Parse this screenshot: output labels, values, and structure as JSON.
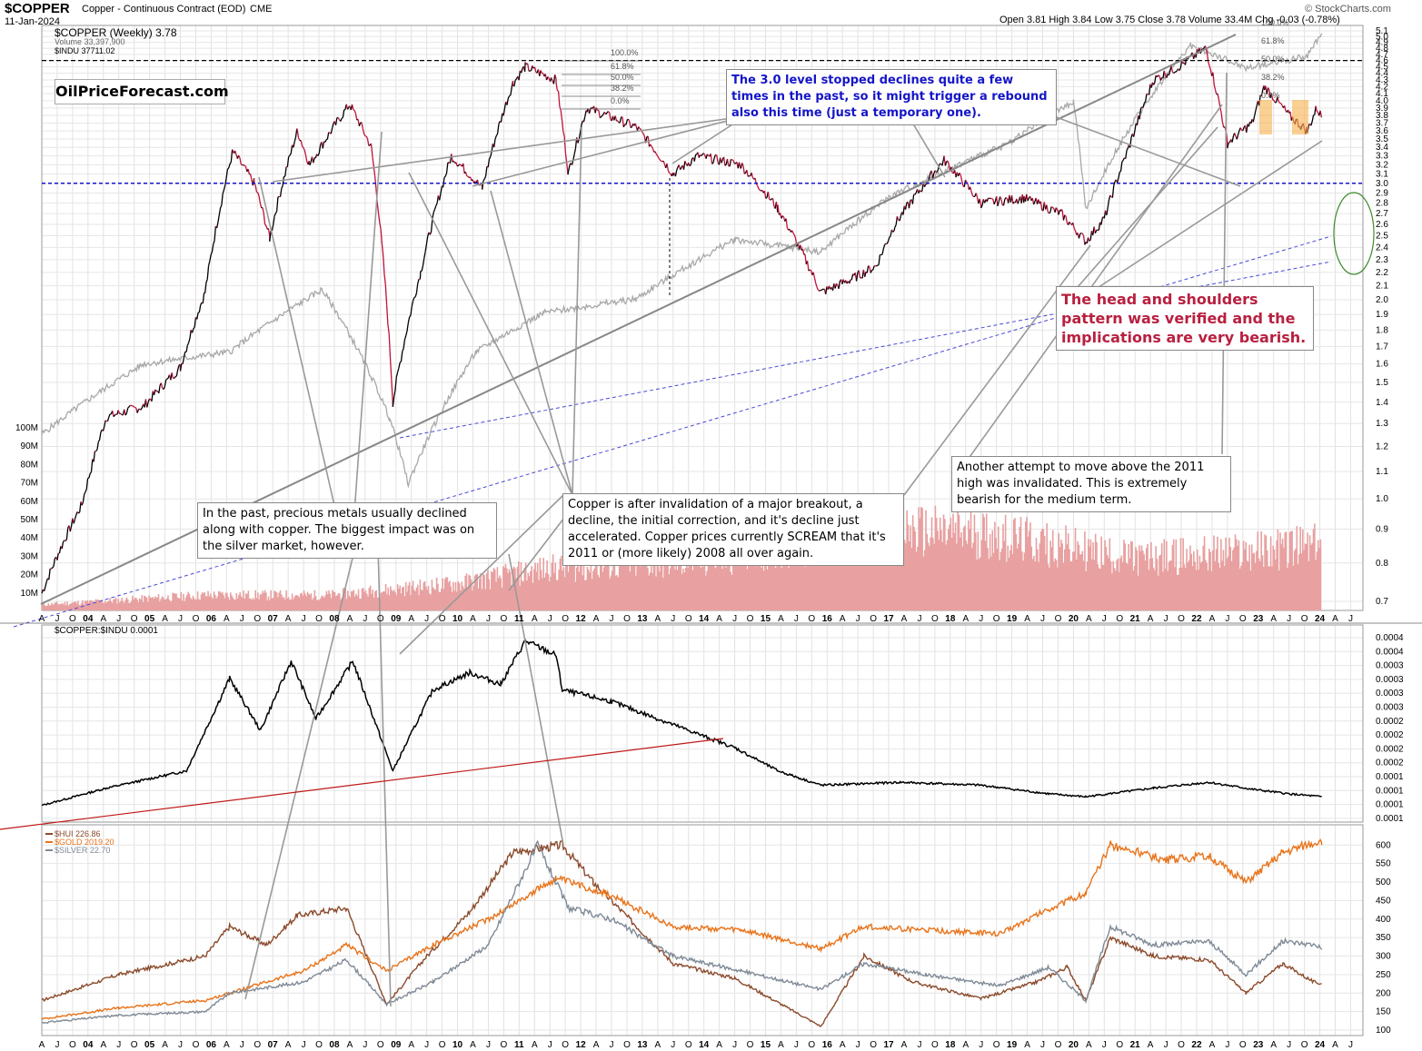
{
  "header": {
    "symbol": "$COPPER",
    "description": "Copper - Continuous Contract (EOD)",
    "exchange": "CME",
    "date": "11-Jan-2024",
    "ohlc": "Open 3.81  High 3.84  Low 3.75  Close 3.78  Volume 33.4M  Chg -0.03 (-0.78%)",
    "credit": "© StockCharts.com",
    "legend_copper": "$COPPER (Weekly) 3.78",
    "legend_volume": "Volume 33,397,900",
    "legend_indu": "$INDU 37711.02",
    "watermark": "OilPriceForecast.com"
  },
  "annotations": {
    "level_note": "The 3.0 level stopped declines quite a few times in the past, so it might trigger a rebound also this time (just a temporary one).",
    "hs_note": "The head and shoulders pattern was verified and the implications are very bearish.",
    "attempt_note": "Another attempt to move above the 2011 high was invalidated. This is extremely bearish for the medium term.",
    "breakout_note": "Copper is after invalidation of a major breakout, a decline, the initial correction, and it's decline just accelerated. Copper prices currently SCREAM that it's 2011 or (more likely) 2008 all over again.",
    "metals_note": "In the past, precious metals usually declined along with copper. The biggest impact was on the silver market, however."
  },
  "colors": {
    "copper_up": "#000000",
    "copper_down": "#c0103a",
    "indu": "#a8a8a8",
    "volume": "#e8a0a0",
    "ratio": "#000000",
    "hui": "#8b4a2b",
    "gold": "#e8731a",
    "silver": "#7f8a96",
    "level_line": "#1515c8",
    "trend_red": "#c01818"
  },
  "chart_data": [
    {
      "type": "line",
      "title": "$COPPER (Weekly)",
      "y_ticks": [
        "5.1",
        "5.0",
        "4.9",
        "4.8",
        "4.7",
        "4.6",
        "4.5",
        "4.4",
        "4.3",
        "4.2",
        "4.1",
        "4.0",
        "3.9",
        "3.8",
        "3.7",
        "3.6",
        "3.5",
        "3.4",
        "3.3",
        "3.2",
        "3.1",
        "3.0",
        "2.9",
        "2.8",
        "2.7",
        "2.6",
        "2.5",
        "2.4",
        "2.3",
        "2.2",
        "2.1",
        "2.0",
        "1.9",
        "1.8",
        "1.7",
        "1.6",
        "1.5",
        "1.4",
        "1.3",
        "1.2",
        "1.1",
        "1.0",
        "0.9",
        "0.8",
        "0.7"
      ],
      "y_scale": "log",
      "volume_ticks": [
        "100M",
        "90M",
        "80M",
        "70M",
        "60M",
        "50M",
        "40M",
        "30M",
        "20M",
        "10M"
      ],
      "fib_labels": [
        "100.0%",
        "61.8%",
        "50.0%",
        "38.2%",
        "0.0%"
      ],
      "x_labels": [
        "A",
        "J",
        "O",
        "04",
        "A",
        "J",
        "O",
        "05",
        "A",
        "J",
        "O",
        "06",
        "A",
        "J",
        "O",
        "07",
        "A",
        "J",
        "O",
        "08",
        "A",
        "J",
        "O",
        "09",
        "A",
        "J",
        "O",
        "10",
        "A",
        "J",
        "O",
        "11",
        "A",
        "J",
        "O",
        "12",
        "A",
        "J",
        "O",
        "13",
        "A",
        "J",
        "O",
        "14",
        "A",
        "J",
        "O",
        "15",
        "A",
        "J",
        "O",
        "16",
        "A",
        "J",
        "O",
        "17",
        "A",
        "J",
        "O",
        "18",
        "A",
        "J",
        "O",
        "19",
        "A",
        "J",
        "O",
        "20",
        "A",
        "J",
        "O",
        "21",
        "A",
        "J",
        "O",
        "22",
        "A",
        "J",
        "O",
        "23",
        "A",
        "J",
        "O",
        "24",
        "A",
        "J"
      ],
      "series": [
        {
          "name": "$COPPER",
          "x": [
            2003.25,
            2003.9,
            2004.3,
            2004.9,
            2005.5,
            2005.9,
            2006.35,
            2006.7,
            2006.95,
            2007.4,
            2007.6,
            2008.25,
            2008.6,
            2008.95,
            2009.4,
            2009.9,
            2010.4,
            2010.9,
            2011.1,
            2011.6,
            2011.8,
            2012.1,
            2012.9,
            2013.5,
            2013.9,
            2014.6,
            2015.2,
            2015.9,
            2016.4,
            2016.8,
            2017.1,
            2017.9,
            2018.5,
            2019.2,
            2019.8,
            2020.2,
            2020.5,
            2020.9,
            2021.3,
            2021.7,
            2022.15,
            2022.5,
            2022.9,
            2023.1,
            2023.5,
            2023.8,
            2023.95,
            2024.03
          ],
          "y": [
            0.72,
            0.98,
            1.33,
            1.38,
            1.58,
            2.05,
            3.35,
            3.0,
            2.48,
            3.6,
            3.2,
            3.95,
            3.4,
            1.4,
            2.2,
            3.3,
            2.95,
            4.25,
            4.5,
            4.3,
            3.1,
            3.9,
            3.65,
            3.1,
            3.3,
            3.2,
            2.75,
            2.05,
            2.15,
            2.25,
            2.6,
            3.25,
            2.8,
            2.85,
            2.7,
            2.45,
            2.65,
            3.4,
            4.3,
            4.5,
            4.8,
            3.45,
            3.7,
            4.2,
            3.8,
            3.6,
            3.9,
            3.78
          ]
        },
        {
          "name": "$INDU",
          "x": [
            2003.25,
            2004.9,
            2006.3,
            2007.8,
            2008.9,
            2009.2,
            2010.3,
            2011.4,
            2012.9,
            2014.5,
            2015.9,
            2017.0,
            2018.9,
            2020.0,
            2020.2,
            2021.9,
            2022.8,
            2023.8,
            2024.03
          ],
          "y": [
            8000,
            10500,
            11000,
            14000,
            8500,
            6600,
            11000,
            12800,
            13500,
            17000,
            16200,
            20000,
            24500,
            29000,
            19000,
            36000,
            33000,
            34500,
            37711
          ]
        },
        {
          "name": "Volume",
          "x": [
            2003.25,
            2005.9,
            2007.9,
            2010.0,
            2011.5,
            2014.0,
            2016.9,
            2018.5,
            2019.5,
            2021.0,
            2022.5,
            2024.0
          ],
          "y": [
            3,
            8,
            8,
            14,
            22,
            26,
            42,
            40,
            35,
            27,
            30,
            34
          ]
        }
      ]
    },
    {
      "type": "line",
      "title": "$COPPER:$INDU 0.0001",
      "y_ticks": [
        "0.0004",
        "0.0004",
        "0.0003",
        "0.0003",
        "0.0003",
        "0.0003",
        "0.0002",
        "0.0002",
        "0.0002",
        "0.0002",
        "0.0001",
        "0.0001",
        "0.0001",
        "0.0001"
      ],
      "series": [
        {
          "name": "$COPPER:$INDU",
          "x": [
            2003.25,
            2004.3,
            2005.6,
            2006.3,
            2006.8,
            2007.3,
            2007.7,
            2008.3,
            2008.95,
            2009.6,
            2010.2,
            2010.7,
            2011.1,
            2011.6,
            2011.7,
            2012.5,
            2013.5,
            2014.5,
            2015.2,
            2015.9,
            2017.2,
            2018.5,
            2019.6,
            2020.2,
            2021.3,
            2022.2,
            2022.9,
            2023.5,
            2024.03
          ],
          "y": [
            0.9,
            1.2,
            1.5,
            3.1,
            2.2,
            3.4,
            2.4,
            3.4,
            1.5,
            2.9,
            3.2,
            3.0,
            3.75,
            3.5,
            2.9,
            2.7,
            2.3,
            1.9,
            1.5,
            1.25,
            1.3,
            1.25,
            1.1,
            1.05,
            1.2,
            1.3,
            1.18,
            1.1,
            1.05
          ]
        }
      ]
    },
    {
      "type": "line",
      "title": "$HUI / $GOLD / $SILVER",
      "y_ticks": [
        "600",
        "550",
        "500",
        "450",
        "400",
        "350",
        "300",
        "250",
        "200",
        "150",
        "100"
      ],
      "legend": [
        "$HUI 226.86",
        "$GOLD 2019.20",
        "$SILVER 22.70"
      ],
      "series": [
        {
          "name": "$HUI 226.86",
          "x": [
            2003.25,
            2004.5,
            2005.9,
            2006.3,
            2006.9,
            2007.4,
            2008.2,
            2008.85,
            2009.5,
            2010.2,
            2010.9,
            2011.7,
            2012.2,
            2013.5,
            2014.5,
            2015.9,
            2016.6,
            2017.4,
            2018.5,
            2019.4,
            2019.9,
            2020.2,
            2020.6,
            2021.3,
            2022.2,
            2022.8,
            2023.4,
            2023.9,
            2024.03
          ],
          "y": [
            180,
            250,
            300,
            380,
            330,
            410,
            430,
            170,
            300,
            420,
            580,
            600,
            500,
            280,
            240,
            110,
            300,
            230,
            185,
            230,
            270,
            180,
            350,
            300,
            290,
            200,
            280,
            230,
            226
          ]
        },
        {
          "name": "$GOLD 2019.20",
          "x": [
            2003.25,
            2004.5,
            2005.9,
            2006.3,
            2007.5,
            2008.2,
            2008.85,
            2009.6,
            2010.5,
            2011.6,
            2012.4,
            2013.5,
            2014.6,
            2015.9,
            2016.6,
            2017.6,
            2018.8,
            2019.5,
            2020.2,
            2020.6,
            2021.5,
            2022.2,
            2022.8,
            2023.4,
            2023.95,
            2024.03
          ],
          "y": [
            130,
            160,
            180,
            200,
            260,
            330,
            260,
            330,
            400,
            510,
            470,
            380,
            370,
            320,
            380,
            370,
            360,
            420,
            470,
            600,
            560,
            570,
            500,
            580,
            610,
            600
          ]
        },
        {
          "name": "$SILVER 22.70",
          "x": [
            2003.25,
            2004.5,
            2005.9,
            2006.3,
            2007.5,
            2008.2,
            2008.85,
            2009.6,
            2010.5,
            2011.3,
            2011.8,
            2012.5,
            2013.5,
            2014.6,
            2015.9,
            2016.6,
            2017.6,
            2018.8,
            2019.6,
            2020.2,
            2020.6,
            2021.3,
            2022.2,
            2022.8,
            2023.4,
            2023.95,
            2024.03
          ],
          "y": [
            120,
            140,
            150,
            200,
            230,
            290,
            170,
            230,
            330,
            600,
            430,
            400,
            300,
            260,
            210,
            280,
            250,
            220,
            270,
            180,
            380,
            330,
            340,
            250,
            340,
            330,
            320
          ]
        }
      ]
    }
  ]
}
